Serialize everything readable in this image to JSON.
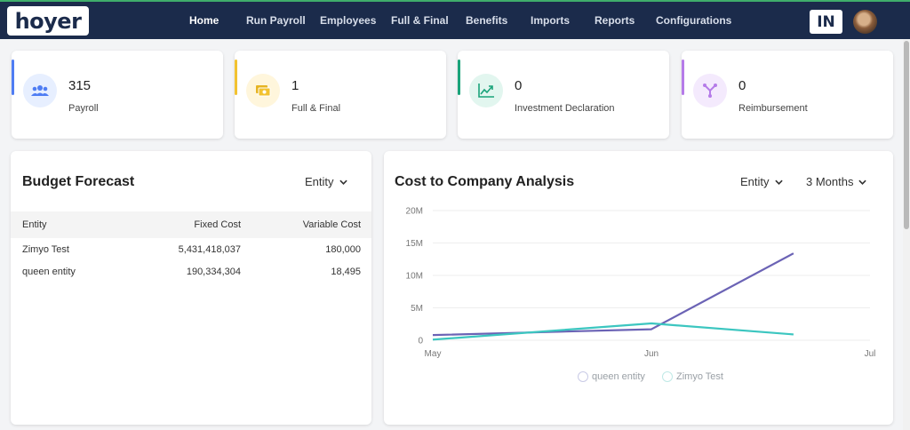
{
  "header": {
    "logo_text": "hoyer",
    "nav": [
      {
        "label": "Home",
        "active": true
      },
      {
        "label": "Run Payroll",
        "active": false
      },
      {
        "label": "Employees",
        "active": false
      },
      {
        "label": "Full & Final",
        "active": false
      },
      {
        "label": "Benefits",
        "active": false
      },
      {
        "label": "Imports",
        "active": false
      },
      {
        "label": "Reports",
        "active": false
      },
      {
        "label": "Configurations",
        "active": false
      }
    ],
    "country_badge": "IN"
  },
  "stats": [
    {
      "value": "315",
      "label": "Payroll",
      "accent": "#4f7df3",
      "icon": "users-icon"
    },
    {
      "value": "1",
      "label": "Full & Final",
      "accent": "#f2c230",
      "icon": "cash-icon"
    },
    {
      "value": "0",
      "label": "Investment Declaration",
      "accent": "#1aa37a",
      "icon": "trend-up-icon"
    },
    {
      "value": "0",
      "label": "Reimbursement",
      "accent": "#b57be8",
      "icon": "split-icon"
    }
  ],
  "budget": {
    "title": "Budget Forecast",
    "filter": "Entity",
    "columns": [
      "Entity",
      "Fixed Cost",
      "Variable Cost"
    ],
    "rows": [
      [
        "Zimyo Test",
        "5,431,418,037",
        "180,000"
      ],
      [
        "queen entity",
        "190,334,304",
        "18,495"
      ]
    ]
  },
  "ctc": {
    "title": "Cost to Company Analysis",
    "filter_entity": "Entity",
    "filter_period": "3 Months"
  },
  "chart_data": {
    "type": "line",
    "categories": [
      "May",
      "Jun",
      "Jul"
    ],
    "y_ticks": [
      "0",
      "5M",
      "10M",
      "15M",
      "20M"
    ],
    "ylim": [
      0,
      20000000
    ],
    "series": [
      {
        "name": "queen entity",
        "color": "#6b63b5",
        "points": [
          [
            0,
            800000
          ],
          [
            1,
            1700000
          ],
          [
            1.65,
            13400000
          ]
        ]
      },
      {
        "name": "Zimyo Test",
        "color": "#3cc6c0",
        "points": [
          [
            0,
            100000
          ],
          [
            1,
            2600000
          ],
          [
            1.65,
            900000
          ]
        ]
      }
    ],
    "grid": true,
    "legend_position": "bottom"
  }
}
